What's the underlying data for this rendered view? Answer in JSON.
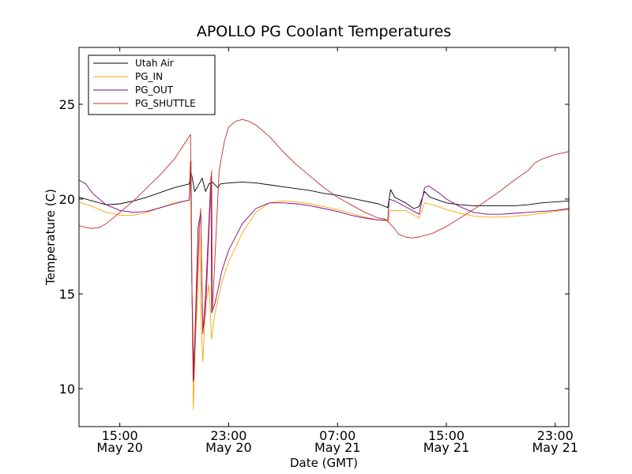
{
  "chart_data": {
    "type": "line",
    "title": "APOLLO PG Coolant Temperatures",
    "xlabel": "Date (GMT)",
    "ylabel": "Temperature (C)",
    "x_unit": "hours since May 20 12:00 GMT",
    "xlim": [
      0,
      36
    ],
    "ylim": [
      8,
      28
    ],
    "yticks": [
      10,
      15,
      20,
      25
    ],
    "xticks": [
      {
        "x": 3,
        "line1": "15:00",
        "line2": "May 20"
      },
      {
        "x": 11,
        "line1": "23:00",
        "line2": "May 20"
      },
      {
        "x": 19,
        "line1": "07:00",
        "line2": "May 21"
      },
      {
        "x": 27,
        "line1": "15:00",
        "line2": "May 21"
      },
      {
        "x": 35,
        "line1": "23:00",
        "line2": "May 21"
      }
    ],
    "legend_position": "top-left",
    "series": [
      {
        "name": "Utah Air",
        "color": "#000000",
        "points": [
          [
            0,
            20.1
          ],
          [
            1,
            19.9
          ],
          [
            2,
            19.7
          ],
          [
            3,
            19.75
          ],
          [
            4,
            19.9
          ],
          [
            5,
            20.1
          ],
          [
            6,
            20.35
          ],
          [
            7,
            20.6
          ],
          [
            8.1,
            20.8
          ],
          [
            8.25,
            21.4
          ],
          [
            8.5,
            20.4
          ],
          [
            8.75,
            20.7
          ],
          [
            9.05,
            21.1
          ],
          [
            9.3,
            20.4
          ],
          [
            9.55,
            20.8
          ],
          [
            9.8,
            20.9
          ],
          [
            10.2,
            20.6
          ],
          [
            10.4,
            20.8
          ],
          [
            11,
            20.85
          ],
          [
            12,
            20.9
          ],
          [
            13,
            20.85
          ],
          [
            14,
            20.75
          ],
          [
            15,
            20.65
          ],
          [
            16,
            20.55
          ],
          [
            17,
            20.45
          ],
          [
            18,
            20.3
          ],
          [
            19,
            20.2
          ],
          [
            20,
            20.05
          ],
          [
            21,
            19.9
          ],
          [
            22,
            19.75
          ],
          [
            22.7,
            19.55
          ],
          [
            22.9,
            20.5
          ],
          [
            23.2,
            20.1
          ],
          [
            24,
            19.8
          ],
          [
            24.6,
            19.5
          ],
          [
            25,
            19.6
          ],
          [
            25.4,
            20.4
          ],
          [
            25.8,
            20.1
          ],
          [
            27,
            19.8
          ],
          [
            28,
            19.7
          ],
          [
            29,
            19.65
          ],
          [
            30,
            19.65
          ],
          [
            31,
            19.65
          ],
          [
            32,
            19.65
          ],
          [
            33,
            19.7
          ],
          [
            34,
            19.8
          ],
          [
            35,
            19.85
          ],
          [
            36,
            19.9
          ]
        ]
      },
      {
        "name": "PG_IN",
        "color": "#ffa500",
        "points": [
          [
            0,
            19.85
          ],
          [
            1,
            19.6
          ],
          [
            2,
            19.3
          ],
          [
            3,
            19.15
          ],
          [
            4,
            19.15
          ],
          [
            5,
            19.3
          ],
          [
            6,
            19.55
          ],
          [
            7,
            19.8
          ],
          [
            8.1,
            19.95
          ],
          [
            8.25,
            22.0
          ],
          [
            8.3,
            15.5
          ],
          [
            8.4,
            8.9
          ],
          [
            8.55,
            12.5
          ],
          [
            8.7,
            14.5
          ],
          [
            8.85,
            18.5
          ],
          [
            9.0,
            13.0
          ],
          [
            9.1,
            11.4
          ],
          [
            9.3,
            14.5
          ],
          [
            9.45,
            15.0
          ],
          [
            9.55,
            15.5
          ],
          [
            9.75,
            12.6
          ],
          [
            10.0,
            14.0
          ],
          [
            10.5,
            15.6
          ],
          [
            11,
            16.7
          ],
          [
            12,
            18.2
          ],
          [
            13,
            19.3
          ],
          [
            14,
            19.8
          ],
          [
            15,
            19.9
          ],
          [
            16,
            19.85
          ],
          [
            17,
            19.75
          ],
          [
            18,
            19.6
          ],
          [
            19,
            19.45
          ],
          [
            20,
            19.25
          ],
          [
            21,
            19.05
          ],
          [
            22,
            18.9
          ],
          [
            22.75,
            18.85
          ],
          [
            22.85,
            19.4
          ],
          [
            23.5,
            19.4
          ],
          [
            24,
            19.4
          ],
          [
            25,
            19.0
          ],
          [
            25.4,
            19.8
          ],
          [
            26,
            19.7
          ],
          [
            27,
            19.45
          ],
          [
            28,
            19.25
          ],
          [
            29,
            19.1
          ],
          [
            30,
            19.05
          ],
          [
            31,
            19.05
          ],
          [
            32,
            19.1
          ],
          [
            33,
            19.15
          ],
          [
            34,
            19.25
          ],
          [
            35,
            19.35
          ],
          [
            36,
            19.45
          ]
        ]
      },
      {
        "name": "PG_OUT",
        "color": "#800080",
        "points": [
          [
            0,
            21.0
          ],
          [
            0.5,
            20.8
          ],
          [
            1,
            20.3
          ],
          [
            2,
            19.7
          ],
          [
            3,
            19.4
          ],
          [
            4,
            19.3
          ],
          [
            5,
            19.35
          ],
          [
            6,
            19.55
          ],
          [
            7,
            19.75
          ],
          [
            8.1,
            19.95
          ],
          [
            8.2,
            22.0
          ],
          [
            8.3,
            15.5
          ],
          [
            8.4,
            10.4
          ],
          [
            8.55,
            13.5
          ],
          [
            8.75,
            18.5
          ],
          [
            8.95,
            19.3
          ],
          [
            9.1,
            12.9
          ],
          [
            9.3,
            15.0
          ],
          [
            9.5,
            18.0
          ],
          [
            9.7,
            21.2
          ],
          [
            9.75,
            14.0
          ],
          [
            10.0,
            14.5
          ],
          [
            10.5,
            16.2
          ],
          [
            11,
            17.3
          ],
          [
            12,
            18.7
          ],
          [
            13,
            19.5
          ],
          [
            14,
            19.8
          ],
          [
            15,
            19.8
          ],
          [
            16,
            19.75
          ],
          [
            17,
            19.65
          ],
          [
            18,
            19.5
          ],
          [
            19,
            19.35
          ],
          [
            20,
            19.15
          ],
          [
            21,
            19.0
          ],
          [
            22,
            18.9
          ],
          [
            22.7,
            18.9
          ],
          [
            22.8,
            20.0
          ],
          [
            23.2,
            19.9
          ],
          [
            24,
            19.6
          ],
          [
            25,
            19.2
          ],
          [
            25.4,
            20.6
          ],
          [
            25.7,
            20.7
          ],
          [
            26.5,
            20.3
          ],
          [
            27,
            20.0
          ],
          [
            28,
            19.6
          ],
          [
            29,
            19.3
          ],
          [
            30,
            19.2
          ],
          [
            31,
            19.2
          ],
          [
            32,
            19.25
          ],
          [
            33,
            19.3
          ],
          [
            34,
            19.35
          ],
          [
            35,
            19.4
          ],
          [
            36,
            19.5
          ]
        ]
      },
      {
        "name": "PG_SHUTTLE",
        "color": "#c0302c",
        "points": [
          [
            0,
            18.6
          ],
          [
            0.5,
            18.5
          ],
          [
            1,
            18.45
          ],
          [
            1.5,
            18.5
          ],
          [
            2,
            18.7
          ],
          [
            3,
            19.3
          ],
          [
            4,
            19.9
          ],
          [
            5,
            20.6
          ],
          [
            6,
            21.3
          ],
          [
            7,
            22.1
          ],
          [
            8.1,
            23.3
          ],
          [
            8.2,
            23.4
          ],
          [
            8.3,
            15.5
          ],
          [
            8.45,
            10.5
          ],
          [
            8.65,
            15.0
          ],
          [
            8.85,
            18.5
          ],
          [
            8.95,
            19.5
          ],
          [
            9.1,
            13.0
          ],
          [
            9.3,
            14.0
          ],
          [
            9.6,
            19.0
          ],
          [
            9.75,
            21.5
          ],
          [
            9.8,
            14.1
          ],
          [
            10.0,
            17.0
          ],
          [
            10.3,
            21.5
          ],
          [
            10.7,
            23.1
          ],
          [
            11,
            23.8
          ],
          [
            11.5,
            24.1
          ],
          [
            12,
            24.2
          ],
          [
            12.5,
            24.1
          ],
          [
            13,
            23.9
          ],
          [
            14,
            23.3
          ],
          [
            15,
            22.5
          ],
          [
            16,
            21.8
          ],
          [
            17,
            21.2
          ],
          [
            18,
            20.6
          ],
          [
            19,
            20.1
          ],
          [
            20,
            19.7
          ],
          [
            21,
            19.3
          ],
          [
            22,
            19.0
          ],
          [
            22.5,
            18.95
          ],
          [
            23,
            18.6
          ],
          [
            23.5,
            18.15
          ],
          [
            24,
            18.0
          ],
          [
            24.5,
            17.95
          ],
          [
            25,
            18.0
          ],
          [
            26,
            18.2
          ],
          [
            27,
            18.55
          ],
          [
            28,
            19.0
          ],
          [
            29,
            19.45
          ],
          [
            30,
            19.95
          ],
          [
            31,
            20.45
          ],
          [
            32,
            21.0
          ],
          [
            33,
            21.5
          ],
          [
            33.5,
            21.9
          ],
          [
            34,
            22.1
          ],
          [
            35,
            22.35
          ],
          [
            36,
            22.5
          ]
        ]
      }
    ]
  }
}
